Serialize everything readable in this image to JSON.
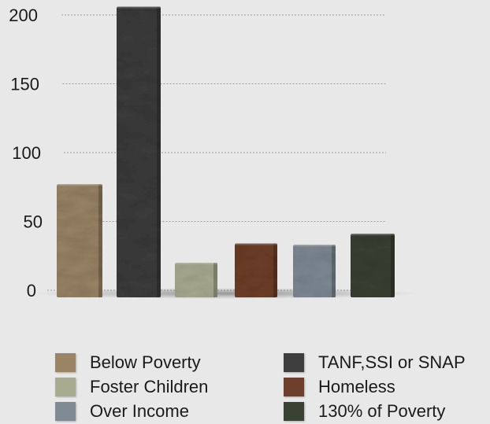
{
  "chart_data": {
    "type": "bar",
    "categories": [
      "Below Poverty",
      "TANF,SSI or SNAP",
      "Foster Children",
      "Homeless",
      "Over Income",
      "130% of Poverty"
    ],
    "values": [
      77,
      206,
      20,
      34,
      33,
      41
    ],
    "colors": [
      "#9a8466",
      "#3e3e3e",
      "#a9ab91",
      "#6e3f2c",
      "#808a95",
      "#3a4234"
    ],
    "ylim": [
      0,
      200
    ],
    "yticks": [
      0,
      50,
      100,
      150,
      200
    ],
    "grid": true,
    "legend_position": "bottom",
    "legend": [
      {
        "label": "Below Poverty",
        "color": "#9a8466"
      },
      {
        "label": "TANF,SSI or SNAP",
        "color": "#3e3e3e"
      },
      {
        "label": "Foster Children",
        "color": "#a9ab91"
      },
      {
        "label": "Homeless",
        "color": "#6e3f2c"
      },
      {
        "label": "Over Income",
        "color": "#808a95"
      },
      {
        "label": "130% of Poverty",
        "color": "#3a4234"
      }
    ]
  }
}
